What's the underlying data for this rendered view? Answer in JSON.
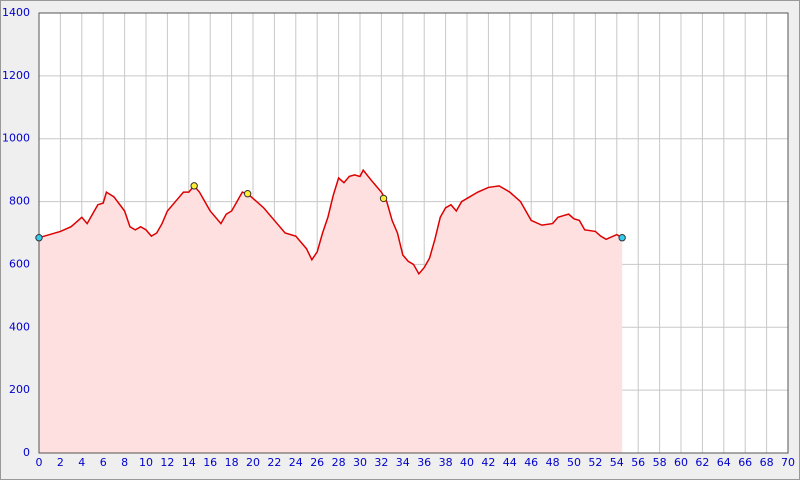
{
  "chart_data": {
    "type": "area",
    "x": [
      0,
      1,
      2,
      3,
      4,
      4.5,
      5,
      5.5,
      6,
      6.3,
      7,
      8,
      8.5,
      9,
      9.5,
      10,
      10.5,
      11,
      11.5,
      12,
      13,
      13.5,
      14,
      14.5,
      15,
      15.5,
      16,
      17,
      17.5,
      18,
      18.5,
      19,
      19.5,
      20,
      21,
      22,
      23,
      24,
      25,
      25.5,
      26,
      26.5,
      27,
      27.5,
      28,
      28.5,
      29,
      29.5,
      30,
      30.3,
      31,
      31.5,
      32,
      32.5,
      33,
      33.5,
      34,
      34.5,
      35,
      35.5,
      36,
      36.5,
      37,
      37.5,
      38,
      38.5,
      39,
      39.5,
      40,
      41,
      42,
      43,
      44,
      45,
      45.5,
      46,
      47,
      48,
      48.5,
      49,
      49.5,
      50,
      50.5,
      51,
      52,
      52.5,
      53,
      54,
      54.5
    ],
    "values": [
      685,
      695,
      705,
      720,
      750,
      730,
      760,
      790,
      795,
      830,
      815,
      770,
      720,
      710,
      720,
      710,
      690,
      700,
      730,
      770,
      810,
      830,
      830,
      850,
      830,
      800,
      770,
      730,
      760,
      770,
      800,
      830,
      825,
      810,
      780,
      740,
      700,
      690,
      650,
      615,
      640,
      700,
      750,
      820,
      875,
      860,
      880,
      885,
      880,
      900,
      870,
      850,
      830,
      800,
      740,
      700,
      630,
      610,
      600,
      570,
      590,
      620,
      680,
      750,
      780,
      790,
      770,
      800,
      810,
      830,
      845,
      850,
      830,
      800,
      770,
      740,
      725,
      730,
      750,
      755,
      760,
      745,
      740,
      710,
      705,
      690,
      680,
      695,
      685
    ],
    "color": "#dd0000",
    "fill": "#ffe0e0",
    "markers": [
      {
        "x": 0,
        "y": 685,
        "color": "#33ccee"
      },
      {
        "x": 14.5,
        "y": 850,
        "color": "#ffee33"
      },
      {
        "x": 19.5,
        "y": 825,
        "color": "#ffee33"
      },
      {
        "x": 32.2,
        "y": 810,
        "color": "#ffee33"
      },
      {
        "x": 54.5,
        "y": 685,
        "color": "#33ccee"
      }
    ],
    "xlim": [
      0,
      70
    ],
    "ylim": [
      0,
      1400
    ],
    "xticks": [
      0,
      2,
      4,
      6,
      8,
      10,
      12,
      14,
      16,
      18,
      20,
      22,
      24,
      26,
      28,
      30,
      32,
      34,
      36,
      38,
      40,
      42,
      44,
      46,
      48,
      50,
      52,
      54,
      56,
      58,
      60,
      62,
      64,
      66,
      68,
      70
    ],
    "yticks": [
      0,
      200,
      400,
      600,
      800,
      1000,
      1200,
      1400
    ],
    "grid": true
  }
}
